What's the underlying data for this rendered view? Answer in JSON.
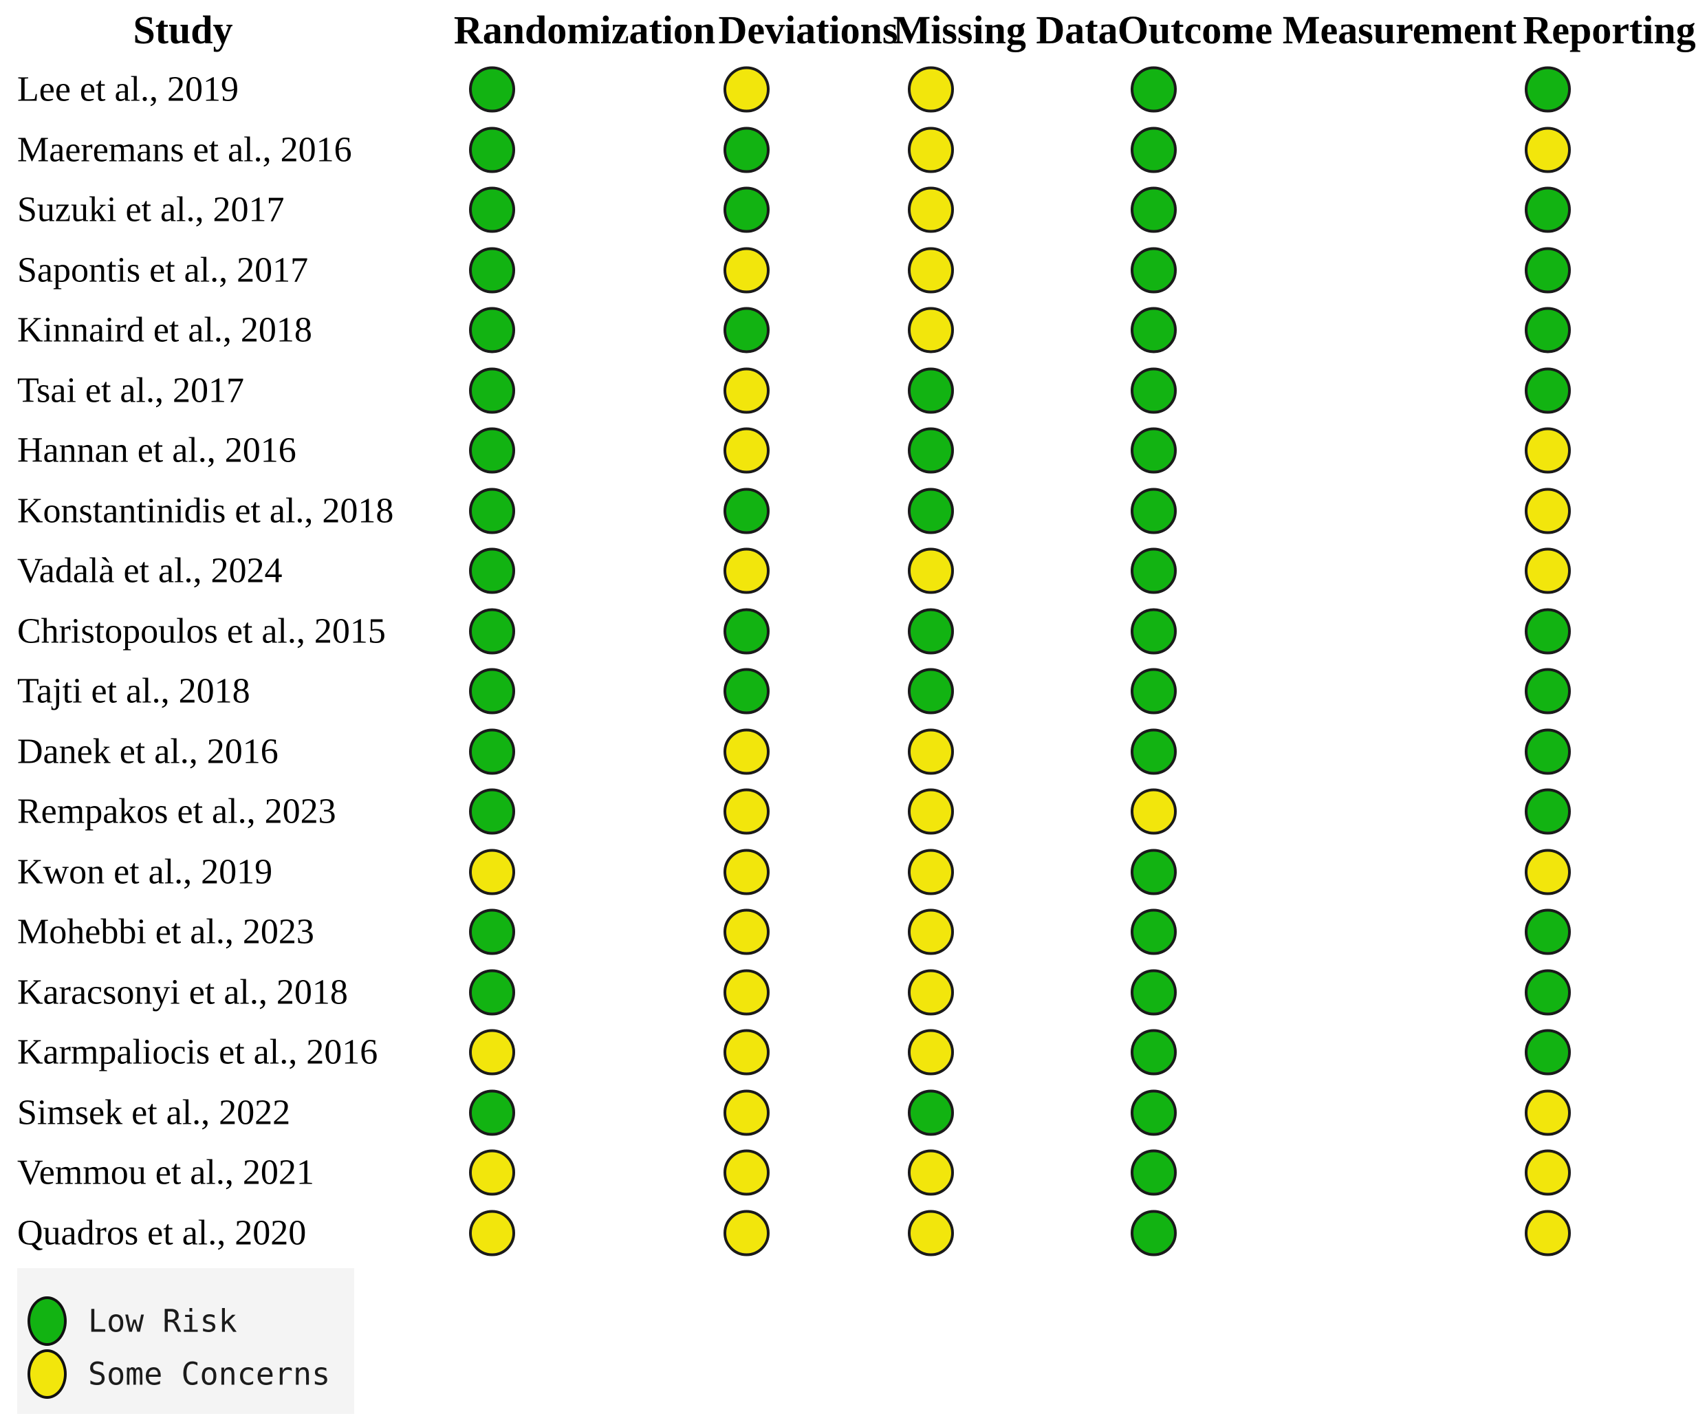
{
  "header": {
    "study": "Study",
    "domains": [
      "Randomization",
      "Deviations",
      "Missing Data",
      "Outcome Measurement",
      "Reporting"
    ]
  },
  "ratings_key": {
    "low": {
      "label": "Low Risk",
      "color": "#12b312"
    },
    "some": {
      "label": "Some Concerns",
      "color": "#f2e60c"
    }
  },
  "studies": [
    {
      "name": "Lee et al., 2019",
      "ratings": [
        "low",
        "some",
        "some",
        "low",
        "low"
      ]
    },
    {
      "name": "Maeremans et al., 2016",
      "ratings": [
        "low",
        "low",
        "some",
        "low",
        "some"
      ]
    },
    {
      "name": "Suzuki et al., 2017",
      "ratings": [
        "low",
        "low",
        "some",
        "low",
        "low"
      ]
    },
    {
      "name": "Sapontis et al., 2017",
      "ratings": [
        "low",
        "some",
        "some",
        "low",
        "low"
      ]
    },
    {
      "name": "Kinnaird et al., 2018",
      "ratings": [
        "low",
        "low",
        "some",
        "low",
        "low"
      ]
    },
    {
      "name": "Tsai et al., 2017",
      "ratings": [
        "low",
        "some",
        "low",
        "low",
        "low"
      ]
    },
    {
      "name": "Hannan et al., 2016",
      "ratings": [
        "low",
        "some",
        "low",
        "low",
        "some"
      ]
    },
    {
      "name": "Konstantinidis et al., 2018",
      "ratings": [
        "low",
        "low",
        "low",
        "low",
        "some"
      ]
    },
    {
      "name": "Vadalà et al., 2024",
      "ratings": [
        "low",
        "some",
        "some",
        "low",
        "some"
      ]
    },
    {
      "name": "Christopoulos et al., 2015",
      "ratings": [
        "low",
        "low",
        "low",
        "low",
        "low"
      ]
    },
    {
      "name": "Tajti et al., 2018",
      "ratings": [
        "low",
        "low",
        "low",
        "low",
        "low"
      ]
    },
    {
      "name": "Danek et al., 2016",
      "ratings": [
        "low",
        "some",
        "some",
        "low",
        "low"
      ]
    },
    {
      "name": "Rempakos et al., 2023",
      "ratings": [
        "low",
        "some",
        "some",
        "some",
        "low"
      ]
    },
    {
      "name": "Kwon et al., 2019",
      "ratings": [
        "some",
        "some",
        "some",
        "low",
        "some"
      ]
    },
    {
      "name": "Mohebbi et al., 2023",
      "ratings": [
        "low",
        "some",
        "some",
        "low",
        "low"
      ]
    },
    {
      "name": "Karacsonyi et al., 2018",
      "ratings": [
        "low",
        "some",
        "some",
        "low",
        "low"
      ]
    },
    {
      "name": "Karmpaliocis et al., 2016",
      "ratings": [
        "some",
        "some",
        "some",
        "low",
        "low"
      ]
    },
    {
      "name": "Simsek et al., 2022",
      "ratings": [
        "low",
        "some",
        "low",
        "low",
        "some"
      ]
    },
    {
      "name": "Vemmou et al., 2021",
      "ratings": [
        "some",
        "some",
        "some",
        "low",
        "some"
      ]
    },
    {
      "name": "Quadros et al., 2020",
      "ratings": [
        "some",
        "some",
        "some",
        "low",
        "some"
      ]
    }
  ],
  "legend": [
    {
      "rating": "low",
      "label": "Low Risk"
    },
    {
      "rating": "some",
      "label": "Some Concerns"
    }
  ],
  "chart_data": {
    "type": "heatmap",
    "subtype": "risk-of-bias-traffic-light",
    "title": "",
    "columns": [
      "Randomization",
      "Deviations",
      "Missing Data",
      "Outcome Measurement",
      "Reporting"
    ],
    "rows": [
      "Lee et al., 2019",
      "Maeremans et al., 2016",
      "Suzuki et al., 2017",
      "Sapontis et al., 2017",
      "Kinnaird et al., 2018",
      "Tsai et al., 2017",
      "Hannan et al., 2016",
      "Konstantinidis et al., 2018",
      "Vadalà et al., 2024",
      "Christopoulos et al., 2015",
      "Tajti et al., 2018",
      "Danek et al., 2016",
      "Rempakos et al., 2023",
      "Kwon et al., 2019",
      "Mohebbi et al., 2023",
      "Karacsonyi et al., 2018",
      "Karmpaliocis et al., 2016",
      "Simsek et al., 2022",
      "Vemmou et al., 2021",
      "Quadros et al., 2020"
    ],
    "values": [
      [
        "low",
        "some",
        "some",
        "low",
        "low"
      ],
      [
        "low",
        "low",
        "some",
        "low",
        "some"
      ],
      [
        "low",
        "low",
        "some",
        "low",
        "low"
      ],
      [
        "low",
        "some",
        "some",
        "low",
        "low"
      ],
      [
        "low",
        "low",
        "some",
        "low",
        "low"
      ],
      [
        "low",
        "some",
        "low",
        "low",
        "low"
      ],
      [
        "low",
        "some",
        "low",
        "low",
        "some"
      ],
      [
        "low",
        "low",
        "low",
        "low",
        "some"
      ],
      [
        "low",
        "some",
        "some",
        "low",
        "some"
      ],
      [
        "low",
        "low",
        "low",
        "low",
        "low"
      ],
      [
        "low",
        "low",
        "low",
        "low",
        "low"
      ],
      [
        "low",
        "some",
        "some",
        "low",
        "low"
      ],
      [
        "low",
        "some",
        "some",
        "some",
        "low"
      ],
      [
        "some",
        "some",
        "some",
        "low",
        "some"
      ],
      [
        "low",
        "some",
        "some",
        "low",
        "low"
      ],
      [
        "low",
        "some",
        "some",
        "low",
        "low"
      ],
      [
        "some",
        "some",
        "some",
        "low",
        "low"
      ],
      [
        "low",
        "some",
        "low",
        "low",
        "some"
      ],
      [
        "some",
        "some",
        "some",
        "low",
        "some"
      ],
      [
        "some",
        "some",
        "some",
        "low",
        "some"
      ]
    ],
    "value_labels": {
      "low": "Low Risk",
      "some": "Some Concerns"
    },
    "colors": {
      "low": "#12b312",
      "some": "#f2e60c"
    },
    "legend_entries": [
      "Low Risk",
      "Some Concerns"
    ],
    "legend_position": "bottom-left",
    "grid": false
  }
}
